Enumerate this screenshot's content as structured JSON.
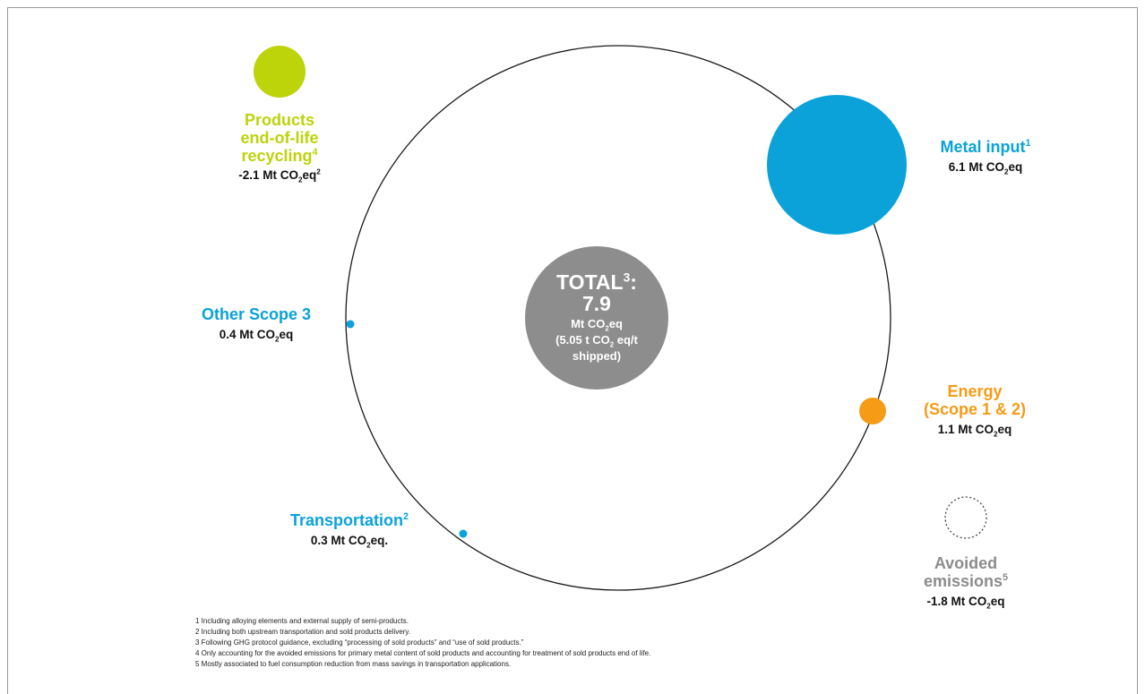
{
  "colors": {
    "green": "#bdd30a",
    "blue": "#0aa2d8",
    "orange": "#f59b16",
    "gray": "#8c8c8c",
    "center": "#8d8d8d"
  },
  "center": {
    "total_label": "TOTAL",
    "total_note": "3",
    "total_colon": ":",
    "total_value": "7.9",
    "unit_pre": "Mt CO",
    "unit_sub": "2",
    "unit_post": "eq",
    "intensity_pre": "(5.05 t CO",
    "intensity_sub": "2",
    "intensity_post": " eq/t",
    "intensity_line2": "shipped)"
  },
  "items": {
    "recycling": {
      "title_l1": "Products",
      "title_l2": "end-of-life",
      "title_l3": "recycling",
      "note": "4",
      "val_pre": "-2.1 Mt CO",
      "val_sub": "2",
      "val_post": "eq",
      "val_note": "2"
    },
    "metal": {
      "title": "Metal input",
      "note": "1",
      "val_pre": "6.1 Mt CO",
      "val_sub": "2",
      "val_post": "eq"
    },
    "other": {
      "title": "Other Scope 3",
      "val_pre": "0.4 Mt CO",
      "val_sub": "2",
      "val_post": "eq"
    },
    "energy": {
      "title_l1": "Energy",
      "title_l2": "(Scope 1 & 2)",
      "val_pre": "1.1 Mt CO",
      "val_sub": "2",
      "val_post": "eq"
    },
    "transport": {
      "title": "Transportation",
      "note": "2",
      "val_pre": "0.3 Mt CO",
      "val_sub": "2",
      "val_post": "eq."
    },
    "avoided": {
      "title_l1": "Avoided",
      "title_l2": "emissions",
      "note": "5",
      "val_pre": "-1.8 Mt CO",
      "val_sub": "2",
      "val_post": "eq"
    }
  },
  "footnotes": [
    "1 Including alloying elements and external supply of semi-products.",
    "2 Including both upstream transportation and sold products delivery.",
    "3 Following GHG protocol guidance, excluding “processing of sold products” and “use of sold products.”",
    "4 Only accounting for the avoided emissions for primary metal content of sold products and accounting for treatment of sold products end of life.",
    "5 Mostly associated to fuel consumption reduction from mass savings in transportation applications."
  ]
}
